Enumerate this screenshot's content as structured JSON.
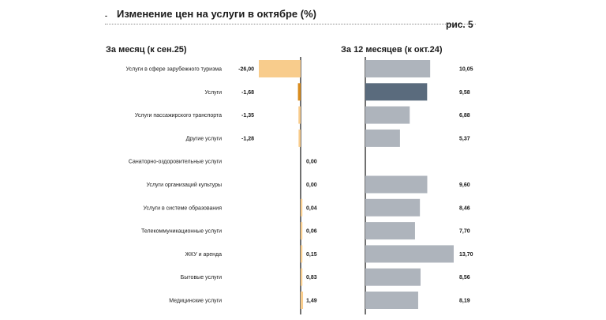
{
  "title": "Изменение цен на услуги в октябре (%)",
  "title_marker": "-",
  "figure_label": "рис. 5",
  "chart_data": [
    {
      "type": "bar",
      "orientation": "horizontal",
      "title": "За месяц (к сен.25)",
      "categories": [
        "Услуги в сфере зарубежного туризма",
        "Услуги",
        "Услуги пассажирского транспорта",
        "Другие услуги",
        "Санаторно-оздоровительные услуги",
        "Услуги организаций культуры",
        "Услуги в системе образования",
        "Телекоммуникационные услуги",
        "ЖКУ и аренда",
        "Бытовые услуги",
        "Медицинские услуги"
      ],
      "values": [
        -26.0,
        -1.68,
        -1.35,
        -1.28,
        0.0,
        0.0,
        0.04,
        0.06,
        0.15,
        0.83,
        1.49
      ],
      "labels": [
        "-26,00",
        "-1,68",
        "-1,35",
        "-1,28",
        "0,00",
        "0,00",
        "0,04",
        "0,06",
        "0,15",
        "0,83",
        "1,49"
      ],
      "highlight_index": 1,
      "colors": {
        "bar": "#f8cc8c",
        "highlight": "#d98c1e"
      }
    },
    {
      "type": "bar",
      "orientation": "horizontal",
      "title": "За 12 месяцев (к окт.24)",
      "categories": [
        "Услуги в сфере зарубежного туризма",
        "Услуги",
        "Услуги пассажирского транспорта",
        "Другие услуги",
        "Санаторно-оздоровительные услуги",
        "Услуги организаций культуры",
        "Услуги в системе образования",
        "Телекоммуникационные услуги",
        "ЖКУ и аренда",
        "Бытовые услуги",
        "Медицинские услуги"
      ],
      "values": [
        10.05,
        9.58,
        6.88,
        5.37,
        null,
        9.6,
        8.46,
        7.7,
        13.7,
        8.56,
        8.19
      ],
      "labels": [
        "10,05",
        "9,58",
        "6,88",
        "5,37",
        "",
        "9,60",
        "8,46",
        "7,70",
        "13,70",
        "8,56",
        "8,19"
      ],
      "highlight_index": 1,
      "colors": {
        "bar": "#aeb4bc",
        "highlight": "#5a6b7d"
      }
    }
  ]
}
